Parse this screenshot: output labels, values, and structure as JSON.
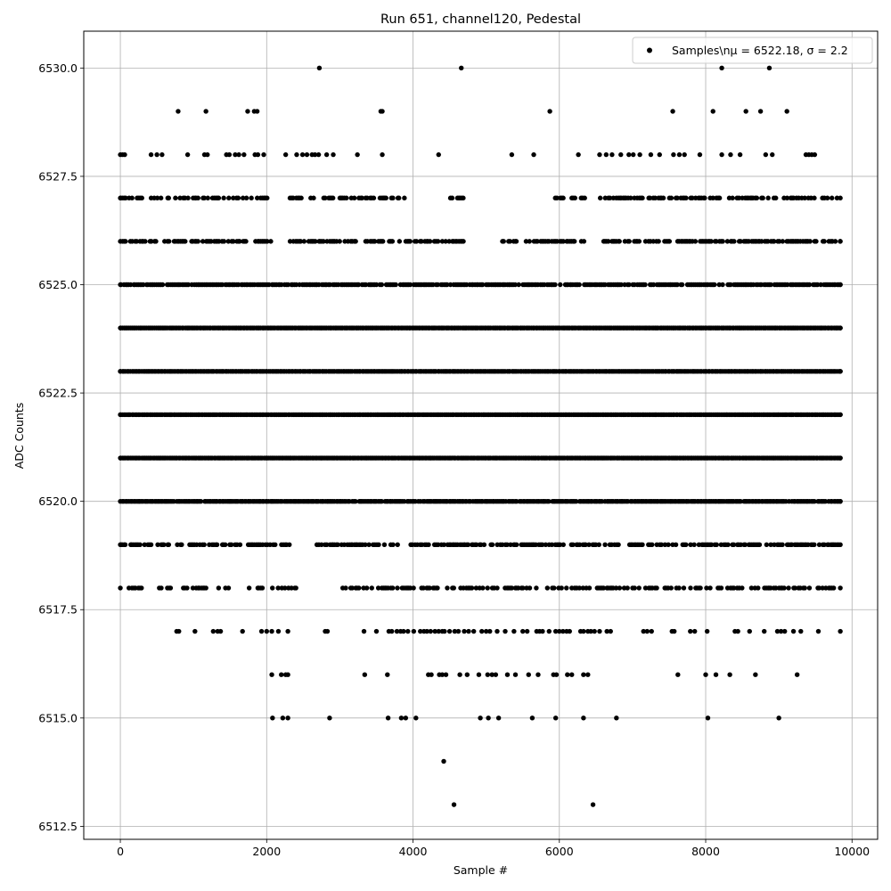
{
  "chart_data": {
    "type": "scatter",
    "title": "Run 651, channel120, Pedestal",
    "xlabel": "Sample #",
    "ylabel": "ADC Counts",
    "xlim": [
      -500,
      10350
    ],
    "ylim": [
      6512.2,
      6530.85
    ],
    "xticks": [
      0,
      2000,
      4000,
      6000,
      8000,
      10000
    ],
    "xtick_labels": [
      "0",
      "2000",
      "4000",
      "6000",
      "8000",
      "10000"
    ],
    "yticks": [
      6512.5,
      6515.0,
      6517.5,
      6520.0,
      6522.5,
      6525.0,
      6527.5,
      6530.0
    ],
    "ytick_labels": [
      "6512.5",
      "6515.0",
      "6517.5",
      "6520.0",
      "6522.5",
      "6525.0",
      "6527.5",
      "6530.0"
    ],
    "grid": true,
    "legend_position": "top-right",
    "legend_label": "Samples\\n$\\mu$ = 6522.18, $\\sigma$ = 2.2",
    "legend_text": "Samples\\nμ = 6522.18, σ = 2.2",
    "marker_color": "#000000",
    "series": [
      {
        "name": "Samples\\nμ = 6522.18, σ = 2.2",
        "x_range": [
          0,
          9840
        ],
        "levels": [
          {
            "y": 6530,
            "x": [
              2720,
              4660,
              8220,
              8870
            ]
          },
          {
            "y": 6529,
            "x": [
              790,
              1170,
              1740,
              1830,
              1870,
              3560,
              3580,
              5870,
              7550,
              8100,
              8550,
              8750,
              9110
            ]
          },
          {
            "y": 6528,
            "x": [
              0,
              30,
              60,
              420,
              500,
              570,
              920,
              1150,
              1190,
              1450,
              1490,
              1570,
              1620,
              1690,
              1840,
              1880,
              1960,
              2260,
              2410,
              2490,
              2550,
              2620,
              2660,
              2710,
              2820,
              2910,
              3240,
              3580,
              4350,
              5350,
              5650,
              6260,
              6550,
              6640,
              6720,
              6840,
              6950,
              7010,
              7100,
              7250,
              7370,
              7560,
              7640,
              7710,
              7920,
              8220,
              8340,
              8470,
              8820,
              8910,
              9370,
              9410,
              9450,
              9490
            ]
          },
          {
            "y": 6527,
            "density": 0.55,
            "gaps": [
              [
                2050,
                2300
              ],
              [
                3900,
                4500
              ],
              [
                4700,
                5900
              ],
              [
                6400,
                6550
              ]
            ]
          },
          {
            "y": 6526,
            "density": 0.7,
            "gaps": [
              [
                2050,
                2300
              ],
              [
                4700,
                5200
              ],
              [
                6350,
                6550
              ]
            ]
          },
          {
            "y": 6525,
            "density": 0.85,
            "gaps": []
          },
          {
            "y": 6524,
            "density": 1.0,
            "gaps": []
          },
          {
            "y": 6523,
            "density": 1.0,
            "gaps": []
          },
          {
            "y": 6522,
            "density": 1.0,
            "gaps": []
          },
          {
            "y": 6521,
            "density": 1.0,
            "gaps": []
          },
          {
            "y": 6520,
            "density": 0.95,
            "gaps": []
          },
          {
            "y": 6519,
            "density": 0.6,
            "gaps": [
              [
                2350,
                2650
              ]
            ]
          },
          {
            "y": 6518,
            "density": 0.45,
            "gaps": [
              [
                300,
                500
              ],
              [
                1500,
                1700
              ],
              [
                2400,
                2850
              ]
            ]
          },
          {
            "y": 6517,
            "x": [
              770,
              800,
              1020,
              1270,
              1330,
              1370,
              1670,
              1930,
              2000,
              2070,
              2160,
              2290,
              2800,
              2830,
              3330,
              3500,
              3670,
              3710,
              3780,
              3830,
              3870,
              3930,
              4010,
              4100,
              4150,
              4190,
              4240,
              4300,
              4350,
              4400,
              4430,
              4500,
              4570,
              4620,
              4700,
              4760,
              4830,
              4940,
              5000,
              5050,
              5150,
              5260,
              5380,
              5500,
              5560,
              5690,
              5730,
              5770,
              5860,
              5950,
              6000,
              6050,
              6100,
              6140,
              6290,
              6330,
              6390,
              6430,
              6480,
              6550,
              6650,
              6700,
              7150,
              7200,
              7260,
              7540,
              7570,
              7790,
              7850,
              8020,
              8400,
              8440,
              8600,
              8800,
              8980,
              9030,
              9080,
              9200,
              9300,
              9540,
              9840
            ]
          },
          {
            "y": 6516,
            "x": [
              2070,
              2200,
              2260,
              2290,
              3340,
              3650,
              4210,
              4250,
              4360,
              4400,
              4450,
              4640,
              4740,
              4900,
              5020,
              5080,
              5130,
              5290,
              5400,
              5580,
              5710,
              5920,
              5960,
              6110,
              6170,
              6330,
              6390,
              7620,
              8000,
              8140,
              8330,
              8680,
              9250
            ]
          },
          {
            "y": 6515,
            "x": [
              2080,
              2220,
              2290,
              2860,
              3660,
              3840,
              3900,
              4040,
              4920,
              5030,
              5170,
              5630,
              5950,
              6330,
              6780,
              8030,
              9000
            ]
          },
          {
            "y": 6514,
            "x": [
              4420
            ]
          },
          {
            "y": 6513,
            "x": [
              4560,
              6460
            ]
          }
        ]
      }
    ]
  }
}
